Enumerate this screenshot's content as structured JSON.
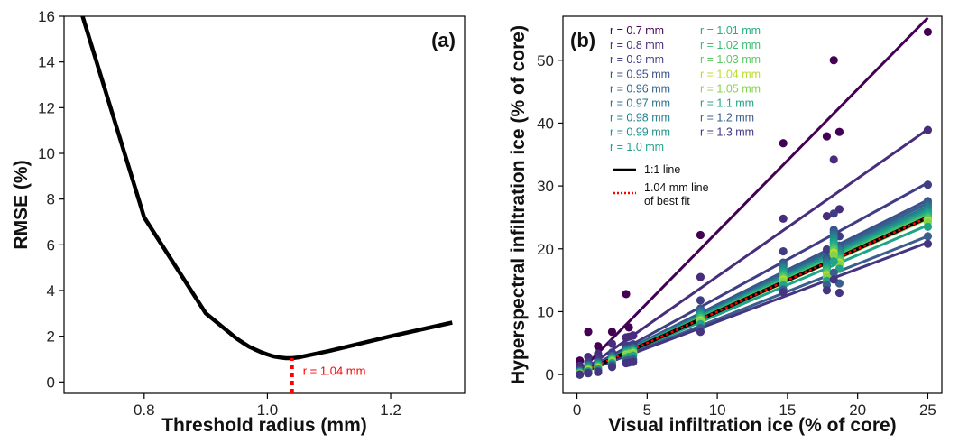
{
  "chart_data": [
    {
      "type": "line",
      "panel_label": "(a)",
      "xlabel": "Threshold radius (mm)",
      "ylabel": "RMSE (%)",
      "xlim": [
        0.67,
        1.32
      ],
      "ylim": [
        -0.5,
        16
      ],
      "xticks": [
        0.8,
        1.0,
        1.2
      ],
      "xtick_labels": [
        "0.8",
        "1.0",
        "1.2"
      ],
      "yticks": [
        0,
        2,
        4,
        6,
        8,
        10,
        12,
        14,
        16
      ],
      "ytick_labels": [
        "0",
        "2",
        "4",
        "6",
        "8",
        "10",
        "12",
        "14",
        "16"
      ],
      "series": [
        {
          "color": "#000000",
          "x": [
            0.7,
            0.8,
            0.9,
            0.95,
            0.96,
            0.97,
            0.98,
            0.99,
            1.0,
            1.01,
            1.02,
            1.03,
            1.04,
            1.05,
            1.1,
            1.2,
            1.3
          ],
          "y": [
            16.0,
            7.2,
            3.0,
            1.9,
            1.72,
            1.55,
            1.42,
            1.3,
            1.2,
            1.12,
            1.07,
            1.04,
            1.04,
            1.07,
            1.35,
            2.0,
            2.6
          ]
        }
      ],
      "annotation": {
        "text": "r = 1.04 mm",
        "x": 1.04,
        "y_from": -0.5,
        "y_to": 1.04,
        "color": "#ff0000"
      },
      "grid": false
    },
    {
      "type": "scatter",
      "panel_label": "(b)",
      "xlabel": "Visual infiltration ice (% of core)",
      "ylabel": "Hyperspectral infiltration ice (% of core)",
      "xlim": [
        -1,
        26
      ],
      "ylim": [
        -3,
        57
      ],
      "xticks": [
        0,
        5,
        10,
        15,
        20,
        25
      ],
      "xtick_labels": [
        "0",
        "5",
        "10",
        "15",
        "20",
        "25"
      ],
      "yticks": [
        0,
        10,
        20,
        30,
        40,
        50
      ],
      "ytick_labels": [
        "0",
        "10",
        "20",
        "30",
        "40",
        "50"
      ],
      "x_points": [
        0.2,
        0.8,
        1.5,
        2.5,
        3.5,
        3.7,
        4.0,
        8.8,
        14.7,
        17.8,
        18.3,
        18.7,
        25.0
      ],
      "series": [
        {
          "name": "r = 0.7 mm",
          "color": "#440154",
          "slope": 2.27,
          "y": [
            2.2,
            6.8,
            4.5,
            6.8,
            12.8,
            7.5,
            6.2,
            22.2,
            36.8,
            37.9,
            50.0,
            38.6,
            54.5
          ]
        },
        {
          "name": "r = 0.8 mm",
          "color": "#472d7b",
          "slope": 1.56,
          "y": [
            1.4,
            2.8,
            3.3,
            4.9,
            5.9,
            6.0,
            6.2,
            15.5,
            24.8,
            25.2,
            34.2,
            26.3,
            38.9
          ]
        },
        {
          "name": "r = 0.9 mm",
          "color": "#3f3e84",
          "slope": 1.22,
          "y": [
            0.8,
            2.0,
            2.4,
            3.5,
            4.6,
            4.6,
            4.8,
            11.8,
            19.6,
            19.9,
            25.6,
            22.0,
            30.2
          ]
        },
        {
          "name": "r = 0.95 mm",
          "color": "#3b528b",
          "slope": 1.11,
          "y": [
            0.6,
            1.6,
            2.0,
            3.0,
            4.0,
            4.1,
            4.3,
            10.5,
            17.8,
            18.5,
            23.0,
            20.5,
            27.6
          ]
        },
        {
          "name": "r = 0.96 mm",
          "color": "#33638d",
          "slope": 1.09,
          "y": [
            0.5,
            1.5,
            1.9,
            2.9,
            3.9,
            4.0,
            4.2,
            10.2,
            17.5,
            18.2,
            22.6,
            20.2,
            27.2
          ]
        },
        {
          "name": "r = 0.97 mm",
          "color": "#2c728e",
          "slope": 1.07,
          "y": [
            0.5,
            1.4,
            1.8,
            2.8,
            3.8,
            3.9,
            4.1,
            10.0,
            17.2,
            17.9,
            22.2,
            19.9,
            26.8
          ]
        },
        {
          "name": "r = 0.98 mm",
          "color": "#26828e",
          "slope": 1.06,
          "y": [
            0.4,
            1.3,
            1.7,
            2.7,
            3.7,
            3.8,
            4.0,
            9.8,
            16.9,
            17.6,
            21.8,
            19.6,
            26.4
          ]
        },
        {
          "name": "r = 0.99 mm",
          "color": "#21918c",
          "slope": 1.05,
          "y": [
            0.4,
            1.2,
            1.6,
            2.6,
            3.6,
            3.7,
            3.9,
            9.6,
            16.6,
            17.3,
            21.4,
            19.3,
            26.0
          ]
        },
        {
          "name": "r = 1.0 mm",
          "color": "#1fa088",
          "slope": 1.04,
          "y": [
            0.3,
            1.1,
            1.5,
            2.5,
            3.5,
            3.6,
            3.8,
            9.4,
            16.3,
            17.0,
            21.0,
            19.0,
            25.7
          ]
        },
        {
          "name": "r = 1.01 mm",
          "color": "#28ae80",
          "slope": 1.03,
          "y": [
            0.3,
            1.0,
            1.4,
            2.4,
            3.4,
            3.5,
            3.7,
            9.2,
            16.0,
            16.7,
            20.6,
            18.7,
            25.4
          ]
        },
        {
          "name": "r = 1.02 mm",
          "color": "#3fbc73",
          "slope": 1.02,
          "y": [
            0.2,
            0.9,
            1.3,
            2.3,
            3.3,
            3.4,
            3.6,
            9.0,
            15.7,
            16.4,
            20.2,
            18.4,
            25.1
          ]
        },
        {
          "name": "r = 1.03 mm",
          "color": "#5ec962",
          "slope": 1.01,
          "y": [
            0.2,
            0.8,
            1.2,
            2.2,
            3.2,
            3.3,
            3.5,
            8.8,
            15.4,
            16.1,
            19.8,
            18.1,
            24.8
          ]
        },
        {
          "name": "r = 1.04 mm",
          "color": "#b8de29",
          "slope": 1.0,
          "y": [
            0.1,
            0.7,
            1.1,
            2.1,
            3.1,
            3.2,
            3.4,
            8.6,
            15.1,
            15.8,
            19.4,
            17.8,
            24.5
          ]
        },
        {
          "name": "r = 1.05 mm",
          "color": "#84d44b",
          "slope": 0.99,
          "y": [
            0.1,
            0.6,
            1.0,
            2.0,
            3.0,
            3.1,
            3.3,
            8.4,
            14.8,
            15.5,
            19.0,
            17.5,
            24.2
          ]
        },
        {
          "name": "r = 1.1 mm",
          "color": "#20a386",
          "slope": 0.95,
          "y": [
            0.0,
            0.5,
            0.9,
            1.8,
            2.6,
            2.8,
            3.0,
            8.0,
            14.2,
            14.9,
            18.0,
            16.8,
            23.5
          ]
        },
        {
          "name": "r = 1.2 mm",
          "color": "#3b5e8c",
          "slope": 0.88,
          "y": [
            0.0,
            0.3,
            0.6,
            1.5,
            2.2,
            2.3,
            2.4,
            7.4,
            13.5,
            14.2,
            16.2,
            14.5,
            22.0
          ]
        },
        {
          "name": "r = 1.3 mm",
          "color": "#453581",
          "slope": 0.84,
          "y": [
            0.0,
            0.2,
            0.4,
            1.2,
            1.8,
            1.9,
            2.0,
            6.8,
            13.1,
            13.4,
            15.1,
            13.0,
            20.8
          ]
        }
      ],
      "reference_lines": [
        {
          "name": "1:1 line",
          "color": "#000000",
          "slope": 1.0
        },
        {
          "name": "1.04 mm line of best fit",
          "color": "#ff0000",
          "slope": 1.0,
          "dashed": true
        }
      ],
      "legend": {
        "placement": "top-left",
        "fit_label_line1": "1.04 mm line",
        "fit_label_line2": "of best fit"
      },
      "grid": false
    }
  ]
}
